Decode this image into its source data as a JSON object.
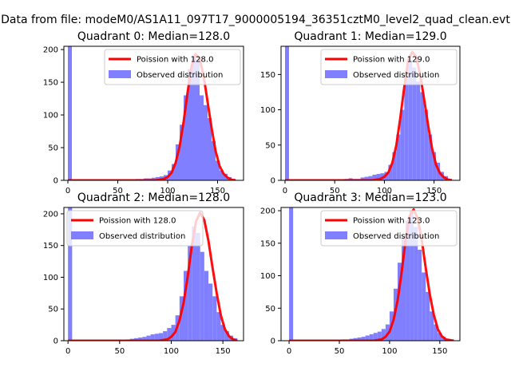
{
  "figure": {
    "title": "Data from file: modeM0/AS1A11_097T17_9000005194_36351cztM0_level2_quad_clean.evt"
  },
  "colors": {
    "observed": "#7f7fff",
    "poisson": "#ff0000"
  },
  "chart_data": [
    {
      "type": "bar",
      "title": "Quadrant 0: Median=128.0",
      "legend_placement": "upper-right",
      "xlim": [
        -4,
        176
      ],
      "ylim": [
        0,
        205
      ],
      "xticks": [
        0,
        50,
        100,
        150
      ],
      "yticks": [
        0,
        50,
        100,
        150,
        200
      ],
      "bin_width": 4,
      "bins": {
        "start": [
          0,
          56,
          60,
          64,
          68,
          72,
          76,
          80,
          84,
          88,
          92,
          96,
          100,
          104,
          108,
          112,
          116,
          120,
          124,
          128,
          132,
          136,
          140,
          144,
          148,
          152,
          156,
          160,
          164
        ],
        "count": [
          205,
          1,
          1,
          1,
          2,
          2,
          3,
          3,
          4,
          5,
          6,
          8,
          15,
          25,
          55,
          85,
          130,
          170,
          190,
          185,
          130,
          115,
          95,
          60,
          30,
          15,
          10,
          5,
          2
        ]
      },
      "poisson": {
        "label": "Poission with 128.0",
        "x": [
          0,
          64,
          80,
          88,
          96,
          100,
          104,
          108,
          112,
          116,
          120,
          124,
          128,
          132,
          136,
          140,
          144,
          148,
          152,
          156,
          160,
          164,
          168
        ],
        "y": [
          0,
          0,
          0,
          0,
          2,
          5,
          12,
          27,
          52,
          90,
          135,
          175,
          193,
          186,
          160,
          120,
          80,
          45,
          22,
          10,
          4,
          1,
          0
        ]
      },
      "observed_label": "Observed distribution"
    },
    {
      "type": "bar",
      "title": "Quadrant 1: Median=129.0",
      "legend_placement": "upper-right",
      "xlim": [
        -4,
        176
      ],
      "ylim": [
        0,
        190
      ],
      "xticks": [
        0,
        50,
        100,
        150
      ],
      "yticks": [
        0,
        50,
        100,
        150
      ],
      "bin_width": 4,
      "bins": {
        "start": [
          0,
          60,
          64,
          68,
          72,
          76,
          80,
          84,
          88,
          92,
          96,
          100,
          104,
          108,
          112,
          116,
          120,
          124,
          128,
          132,
          136,
          140,
          144,
          148,
          152,
          156,
          160,
          164
        ],
        "count": [
          190,
          2,
          3,
          2,
          2,
          4,
          5,
          6,
          8,
          9,
          10,
          12,
          22,
          40,
          65,
          100,
          145,
          170,
          160,
          140,
          125,
          100,
          65,
          40,
          25,
          12,
          6,
          2
        ]
      },
      "poisson": {
        "label": "Poission with 129.0",
        "x": [
          0,
          64,
          80,
          88,
          96,
          100,
          104,
          108,
          112,
          116,
          120,
          124,
          128,
          132,
          136,
          140,
          144,
          148,
          152,
          156,
          160,
          164,
          168
        ],
        "y": [
          0,
          0,
          0,
          0,
          2,
          5,
          11,
          25,
          50,
          88,
          132,
          170,
          182,
          175,
          150,
          115,
          78,
          45,
          22,
          10,
          4,
          1,
          0
        ]
      },
      "observed_label": "Observed distribution"
    },
    {
      "type": "bar",
      "title": "Quadrant 2: Median=128.0",
      "legend_placement": "upper-left",
      "xlim": [
        -4,
        170
      ],
      "ylim": [
        0,
        210
      ],
      "xticks": [
        0,
        50,
        100,
        150
      ],
      "yticks": [
        0,
        50,
        100,
        150,
        200
      ],
      "bin_width": 4,
      "bins": {
        "start": [
          0,
          56,
          60,
          64,
          68,
          72,
          76,
          80,
          84,
          88,
          92,
          96,
          100,
          104,
          108,
          112,
          116,
          120,
          124,
          128,
          132,
          136,
          140,
          144,
          148,
          152,
          156,
          160
        ],
        "count": [
          210,
          2,
          3,
          4,
          5,
          6,
          8,
          10,
          11,
          12,
          15,
          20,
          25,
          40,
          70,
          110,
          150,
          180,
          170,
          140,
          110,
          90,
          70,
          45,
          25,
          15,
          8,
          4
        ]
      },
      "poisson": {
        "label": "Poission with 128.0",
        "x": [
          0,
          64,
          80,
          88,
          96,
          100,
          104,
          108,
          112,
          116,
          120,
          124,
          128,
          132,
          136,
          140,
          144,
          148,
          152,
          156,
          160,
          164
        ],
        "y": [
          0,
          0,
          0,
          0,
          2,
          6,
          14,
          32,
          60,
          102,
          150,
          188,
          202,
          190,
          158,
          115,
          75,
          40,
          18,
          7,
          2,
          0
        ]
      },
      "observed_label": "Observed distribution"
    },
    {
      "type": "bar",
      "title": "Quadrant 3: Median=123.0",
      "legend_placement": "upper-right",
      "xlim": [
        -8,
        170
      ],
      "ylim": [
        0,
        205
      ],
      "xticks": [
        0,
        50,
        100,
        150
      ],
      "yticks": [
        0,
        50,
        100,
        150,
        200
      ],
      "bin_width": 4,
      "bins": {
        "start": [
          0,
          52,
          56,
          60,
          64,
          68,
          72,
          76,
          80,
          84,
          88,
          92,
          96,
          100,
          104,
          108,
          112,
          116,
          120,
          124,
          128,
          132,
          136,
          140,
          144,
          148,
          152,
          156
        ],
        "count": [
          205,
          2,
          2,
          3,
          4,
          5,
          6,
          8,
          10,
          12,
          14,
          18,
          25,
          45,
          80,
          120,
          160,
          185,
          200,
          175,
          140,
          105,
          75,
          45,
          25,
          12,
          6,
          2
        ]
      },
      "poisson": {
        "label": "Poission with 123.0",
        "x": [
          0,
          64,
          76,
          84,
          92,
          96,
          100,
          104,
          108,
          112,
          116,
          120,
          124,
          128,
          132,
          136,
          140,
          144,
          148,
          152,
          156,
          160,
          164
        ],
        "y": [
          0,
          0,
          0,
          0,
          2,
          6,
          14,
          32,
          62,
          105,
          155,
          192,
          202,
          188,
          155,
          112,
          72,
          40,
          18,
          7,
          2,
          1,
          0
        ]
      },
      "observed_label": "Observed distribution"
    }
  ]
}
